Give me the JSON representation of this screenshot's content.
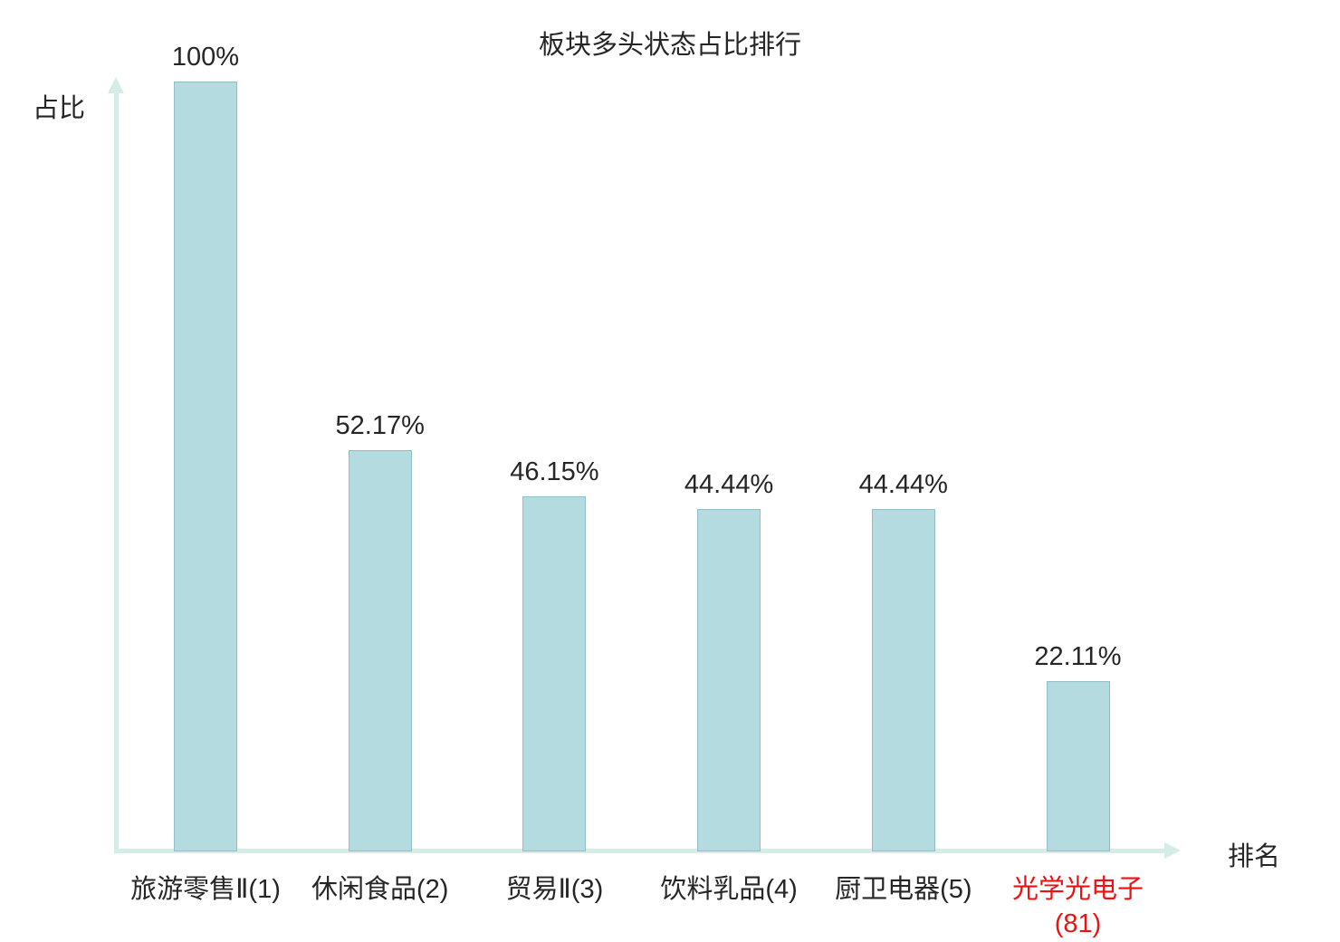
{
  "chart_data": {
    "type": "bar",
    "title": "板块多头状态占比排行",
    "xlabel": "排名",
    "ylabel": "占比",
    "ylim": [
      0,
      100
    ],
    "grid": false,
    "legend": "none",
    "categories": [
      "旅游零售Ⅱ(1)",
      "休闲食品(2)",
      "贸易Ⅱ(3)",
      "饮料乳品(4)",
      "厨卫电器(5)",
      "光学光电子(81)"
    ],
    "values": [
      100,
      52.17,
      46.15,
      44.44,
      44.44,
      22.11
    ],
    "value_labels": [
      "100%",
      "52.17%",
      "46.15%",
      "44.44%",
      "44.44%",
      "22.11%"
    ],
    "highlight_index": 5,
    "colors": {
      "bar_fill": "#b4dbe0",
      "bar_border": "#8fbec8",
      "axis": "#d4ede6",
      "text": "#262626",
      "highlight_text": "#ee1111",
      "background": "#ffffff"
    }
  }
}
